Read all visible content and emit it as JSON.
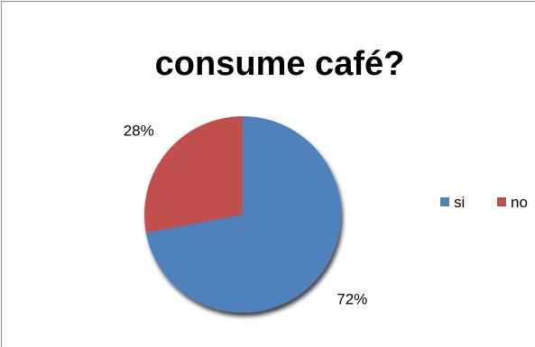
{
  "chart_data": {
    "type": "pie",
    "title": "consume café?",
    "categories": [
      "si",
      "no"
    ],
    "values": [
      72,
      28
    ],
    "data_labels": [
      "72%",
      "28%"
    ],
    "colors": [
      "#4f81bd",
      "#c0504d"
    ],
    "legend_position": "right"
  }
}
